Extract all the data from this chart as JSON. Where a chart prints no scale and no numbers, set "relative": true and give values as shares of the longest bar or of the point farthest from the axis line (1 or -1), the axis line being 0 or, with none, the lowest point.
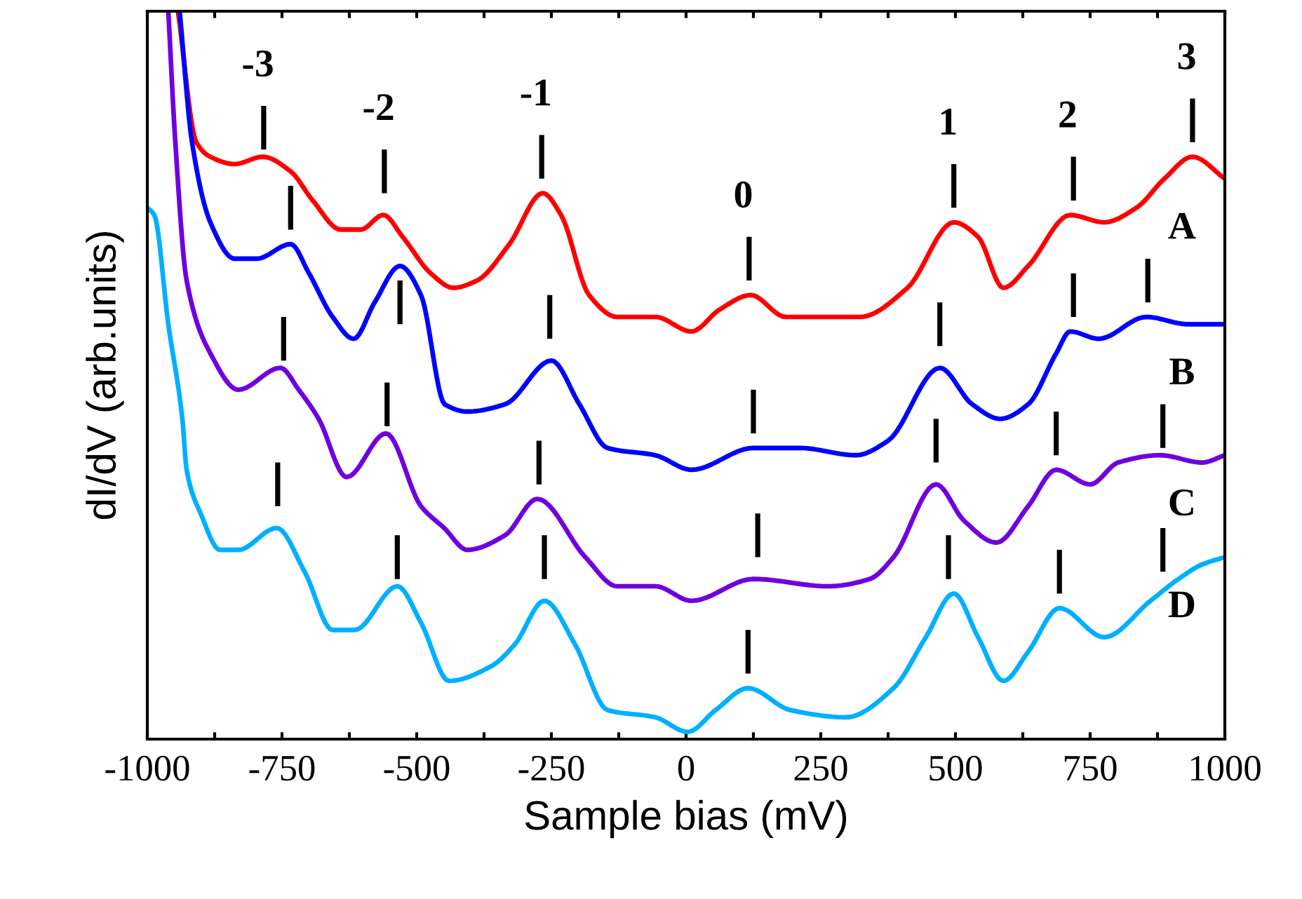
{
  "chart_data": {
    "type": "line",
    "xlabel": "Sample bias (mV)",
    "ylabel": "dI/dV (arb.units)",
    "relative": true,
    "xlim": [
      -1000,
      1000
    ],
    "xticks": [
      -1000,
      {
        "value": -875,
        "label": null
      },
      -750,
      {
        "value": -625,
        "label": null
      },
      -500,
      {
        "value": -375,
        "label": null
      },
      -250,
      {
        "value": -125,
        "label": null
      },
      0,
      {
        "value": 125,
        "label": null
      },
      250,
      {
        "value": 375,
        "label": null
      },
      500,
      {
        "value": 625,
        "label": null
      },
      750,
      {
        "value": 875,
        "label": null
      },
      1000
    ],
    "grid": false,
    "legend": false,
    "line_style": "solid",
    "marker": "none",
    "series": [
      {
        "name": "A",
        "color": "#ff0000",
        "x": [
          -943,
          -909,
          -883,
          -838,
          -786,
          -734,
          -693,
          -641,
          -604,
          -562,
          -526,
          -474,
          -432,
          -388,
          -328,
          -266,
          -232,
          -180,
          -128,
          -57,
          10,
          62,
          120,
          185,
          263,
          323,
          411,
          497,
          542,
          589,
          635,
          713,
          776,
          836,
          888,
          940,
          1000
        ],
        "values": [
          1.0,
          0.82,
          0.8,
          0.79,
          0.8,
          0.78,
          0.74,
          0.7,
          0.7,
          0.72,
          0.69,
          0.64,
          0.62,
          0.63,
          0.68,
          0.75,
          0.72,
          0.61,
          0.58,
          0.58,
          0.56,
          0.59,
          0.61,
          0.58,
          0.58,
          0.58,
          0.62,
          0.71,
          0.69,
          0.62,
          0.65,
          0.72,
          0.71,
          0.73,
          0.77,
          0.8,
          0.77
        ]
      },
      {
        "name": "B",
        "color": "#0000ff",
        "x": [
          -940,
          -917,
          -883,
          -838,
          -797,
          -734,
          -700,
          -656,
          -617,
          -578,
          -531,
          -492,
          -448,
          -406,
          -336,
          -250,
          -198,
          -146,
          -57,
          10,
          125,
          211,
          315,
          375,
          471,
          531,
          583,
          635,
          687,
          713,
          766,
          854,
          932,
          1000
        ],
        "values": [
          1.0,
          0.82,
          0.71,
          0.66,
          0.66,
          0.68,
          0.64,
          0.58,
          0.55,
          0.6,
          0.65,
          0.61,
          0.46,
          0.45,
          0.46,
          0.52,
          0.46,
          0.4,
          0.39,
          0.37,
          0.4,
          0.4,
          0.39,
          0.41,
          0.51,
          0.46,
          0.44,
          0.46,
          0.53,
          0.56,
          0.55,
          0.58,
          0.57,
          0.57
        ]
      },
      {
        "name": "C",
        "color": "#7000e0",
        "x": [
          -961,
          -948,
          -927,
          -883,
          -831,
          -753,
          -719,
          -682,
          -630,
          -557,
          -492,
          -449,
          -406,
          -336,
          -276,
          -187,
          -128,
          -57,
          10,
          125,
          263,
          341,
          385,
          464,
          516,
          576,
          635,
          687,
          750,
          802,
          880,
          958,
          1000
        ],
        "values": [
          1.0,
          0.82,
          0.63,
          0.53,
          0.48,
          0.51,
          0.48,
          0.44,
          0.36,
          0.42,
          0.32,
          0.29,
          0.26,
          0.28,
          0.33,
          0.25,
          0.21,
          0.21,
          0.19,
          0.22,
          0.21,
          0.22,
          0.25,
          0.35,
          0.3,
          0.27,
          0.32,
          0.37,
          0.35,
          0.38,
          0.39,
          0.38,
          0.39
        ]
      },
      {
        "name": "D",
        "color": "#00b0ff",
        "x": [
          -1000,
          -987,
          -961,
          -935,
          -927,
          -901,
          -865,
          -831,
          -760,
          -708,
          -656,
          -615,
          -536,
          -492,
          -440,
          -362,
          -318,
          -263,
          -206,
          -146,
          -57,
          3,
          55,
          115,
          193,
          297,
          385,
          445,
          497,
          542,
          589,
          635,
          693,
          776,
          862,
          914,
          958,
          1000
        ],
        "values": [
          0.73,
          0.72,
          0.57,
          0.44,
          0.37,
          0.31,
          0.26,
          0.26,
          0.29,
          0.23,
          0.15,
          0.15,
          0.21,
          0.16,
          0.08,
          0.1,
          0.13,
          0.19,
          0.13,
          0.04,
          0.03,
          0.01,
          0.04,
          0.07,
          0.04,
          0.03,
          0.07,
          0.14,
          0.2,
          0.14,
          0.08,
          0.12,
          0.18,
          0.14,
          0.19,
          0.22,
          0.24,
          0.25
        ]
      },
      {
        "color": "#000000",
        "x": [
          -784,
          -784,
          null,
          -560,
          -560,
          null,
          -268,
          -268,
          null,
          117,
          117,
          null,
          497,
          497,
          null,
          719,
          719,
          null,
          940,
          940
        ],
        "values": [
          0.81,
          0.87,
          null,
          0.75,
          0.81,
          null,
          0.77,
          0.83,
          null,
          0.63,
          0.69,
          null,
          0.73,
          0.79,
          null,
          0.74,
          0.8,
          null,
          0.82,
          0.88
        ]
      },
      {
        "color": "#000000",
        "x": [
          -734,
          -734,
          null,
          -531,
          -531,
          null,
          -253,
          -253,
          null,
          125,
          125,
          null,
          471,
          471,
          null,
          719,
          719,
          null,
          857,
          857
        ],
        "values": [
          0.7,
          0.76,
          null,
          0.57,
          0.63,
          null,
          0.55,
          0.61,
          null,
          0.42,
          0.48,
          null,
          0.54,
          0.6,
          null,
          0.58,
          0.64,
          null,
          0.6,
          0.66
        ]
      },
      {
        "color": "#000000",
        "x": [
          -747,
          -747,
          null,
          -555,
          -555,
          null,
          -273,
          -273,
          null,
          133,
          133,
          null,
          464,
          464,
          null,
          687,
          687,
          null,
          885,
          885
        ],
        "values": [
          0.52,
          0.58,
          null,
          0.43,
          0.49,
          null,
          0.35,
          0.41,
          null,
          0.25,
          0.31,
          null,
          0.38,
          0.44,
          null,
          0.39,
          0.45,
          null,
          0.4,
          0.46
        ]
      },
      {
        "color": "#000000",
        "x": [
          -758,
          -758,
          null,
          -536,
          -536,
          null,
          -263,
          -263,
          null,
          115,
          115,
          null,
          487,
          487,
          null,
          693,
          693,
          null,
          885,
          885
        ],
        "values": [
          0.32,
          0.38,
          null,
          0.22,
          0.28,
          null,
          0.22,
          0.28,
          null,
          0.09,
          0.15,
          null,
          0.22,
          0.28,
          null,
          0.2,
          0.26,
          null,
          0.23,
          0.29
        ]
      }
    ],
    "annotations": [
      "-3",
      "-2",
      "-1",
      "0",
      "1",
      "2",
      "3"
    ]
  }
}
